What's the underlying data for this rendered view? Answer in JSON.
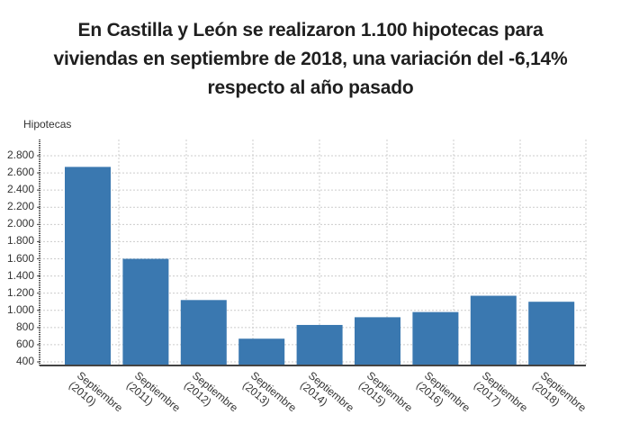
{
  "title": "En Castilla y León se realizaron 1.100 hipotecas para viviendas en septiembre de 2018, una variación del -6,14% respecto al año pasado",
  "title_lines": [
    "En Castilla y León se realizaron 1.100 hipotecas para",
    "viviendas en septiembre de 2018, una variación del -6,14%",
    "respecto al año pasado"
  ],
  "colors": {
    "bar": "#3a78b0",
    "grid": "#cccccc",
    "axis": "#444444"
  },
  "chart_data": {
    "type": "bar",
    "title": "En Castilla y León se realizaron 1.100 hipotecas para viviendas en septiembre de 2018, una variación del -6,14% respecto al año pasado",
    "xlabel": "",
    "ylabel": "Hipotecas",
    "ylim": [
      400,
      2900
    ],
    "yticks": [
      "400",
      "600",
      "800",
      "1.000",
      "1.200",
      "1.400",
      "1.600",
      "1.800",
      "2.000",
      "2.200",
      "2.400",
      "2.600",
      "2.800"
    ],
    "ytick_values": [
      400,
      600,
      800,
      1000,
      1200,
      1400,
      1600,
      1800,
      2000,
      2200,
      2400,
      2600,
      2800
    ],
    "grid": true,
    "categories": [
      "Septiembre (2010)",
      "Septiembre (2011)",
      "Septiembre (2012)",
      "Septiembre (2013)",
      "Septiembre (2014)",
      "Septiembre (2015)",
      "Septiembre (2016)",
      "Septiembre (2017)",
      "Septiembre (2018)"
    ],
    "category_lines": [
      [
        "Septiembre",
        "(2010)"
      ],
      [
        "Septiembre",
        "(2011)"
      ],
      [
        "Septiembre",
        "(2012)"
      ],
      [
        "Septiembre",
        "(2013)"
      ],
      [
        "Septiembre",
        "(2014)"
      ],
      [
        "Septiembre",
        "(2015)"
      ],
      [
        "Septiembre",
        "(2016)"
      ],
      [
        "Septiembre",
        "(2017)"
      ],
      [
        "Septiembre",
        "(2018)"
      ]
    ],
    "values": [
      2670,
      1600,
      1120,
      670,
      830,
      920,
      980,
      1170,
      1100
    ]
  }
}
